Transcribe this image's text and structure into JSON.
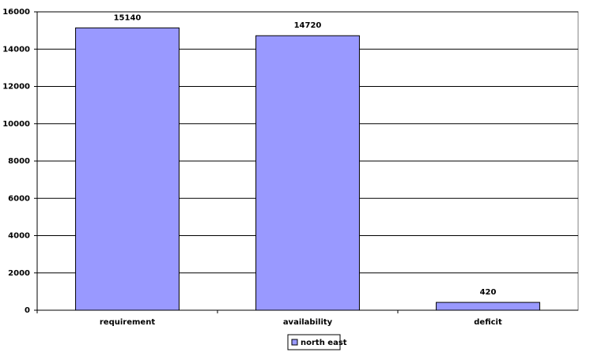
{
  "chart_data": {
    "type": "bar",
    "categories": [
      "requirement",
      "availability",
      "deficit"
    ],
    "series": [
      {
        "name": "north east",
        "color": "#9999ff",
        "values": [
          15140,
          14720,
          420
        ]
      }
    ],
    "ylim": [
      0,
      16000
    ],
    "yticks": [
      0,
      2000,
      4000,
      6000,
      8000,
      10000,
      12000,
      14000,
      16000
    ],
    "grid": true,
    "legend": "bottom",
    "data_labels": true
  }
}
